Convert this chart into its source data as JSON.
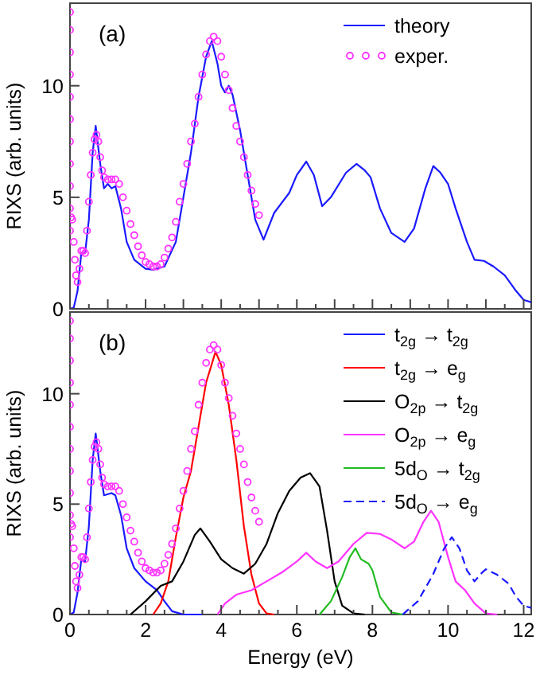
{
  "chart_data": [
    {
      "type": "line",
      "ylabel": "RIXS (arb. units)",
      "annotations": [
        "(a)"
      ],
      "xlim": [
        0,
        12.2
      ],
      "ylim": [
        0,
        13.7
      ],
      "xticks": [
        0,
        {
          "value": 0.5,
          "label": null
        },
        1,
        {
          "value": 1.5,
          "label": null
        },
        2,
        {
          "value": 2.5,
          "label": null
        },
        3,
        {
          "value": 3.5,
          "label": null
        },
        4,
        {
          "value": 4.5,
          "label": null
        },
        5,
        {
          "value": 5.5,
          "label": null
        },
        6,
        {
          "value": 6.5,
          "label": null
        },
        7,
        {
          "value": 7.5,
          "label": null
        },
        8,
        {
          "value": 8.5,
          "label": null
        },
        9,
        {
          "value": 9.5,
          "label": null
        },
        10,
        {
          "value": 10.5,
          "label": null
        },
        11,
        {
          "value": 11.5,
          "label": null
        },
        12
      ],
      "yticks": [
        0,
        5,
        10
      ],
      "tick_labels": "y",
      "legend": "top right",
      "grid": false,
      "series": [
        {
          "name": "theory",
          "color": "#1a1aff",
          "line_style": "solid",
          "x": [
            0,
            0.1,
            0.2,
            0.3,
            0.4,
            0.5,
            0.6,
            0.68,
            0.8,
            0.9,
            1.0,
            1.1,
            1.2,
            1.35,
            1.5,
            1.7,
            2.0,
            2.2,
            2.5,
            2.8,
            3.0,
            3.2,
            3.4,
            3.6,
            3.75,
            3.9,
            4.0,
            4.1,
            4.2,
            4.3,
            4.5,
            4.7,
            4.9,
            5.12,
            5.4,
            5.8,
            6.0,
            6.25,
            6.45,
            6.67,
            6.9,
            7.3,
            7.58,
            7.8,
            7.95,
            8.2,
            8.5,
            8.85,
            9.1,
            9.4,
            9.61,
            9.8,
            10.0,
            10.2,
            10.5,
            10.7,
            10.95,
            11.2,
            11.5,
            11.8,
            12.0,
            12.2
          ],
          "values": [
            0,
            0.05,
            0.8,
            2.5,
            2.5,
            4,
            7,
            8.2,
            6.5,
            5.4,
            5.6,
            5.4,
            5.5,
            4.5,
            3,
            2.2,
            1.8,
            1.75,
            1.9,
            3,
            5,
            7,
            9.5,
            11.3,
            12,
            11,
            10,
            9.7,
            10,
            9.6,
            8,
            6,
            4,
            3.1,
            4.3,
            5.2,
            6.0,
            6.6,
            6.0,
            4.6,
            5.0,
            6.1,
            6.5,
            6.2,
            5.9,
            4.5,
            3.4,
            3.0,
            3.6,
            5.4,
            6.4,
            6.1,
            5.6,
            4.5,
            3.0,
            2.2,
            2.15,
            1.9,
            1.5,
            0.8,
            0.4,
            0.3
          ]
        },
        {
          "name": "exper.",
          "type": "scatter",
          "marker": "circle",
          "color": "#ff33ff",
          "x": [
            0,
            0,
            0,
            0,
            0,
            0,
            0,
            0,
            0,
            0,
            0,
            0.03,
            0.06,
            0.1,
            0.13,
            0.16,
            0.2,
            0.25,
            0.3,
            0.35,
            0.4,
            0.45,
            0.5,
            0.55,
            0.6,
            0.65,
            0.7,
            0.75,
            0.8,
            0.85,
            0.9,
            1.0,
            1.1,
            1.2,
            1.3,
            1.4,
            1.5,
            1.6,
            1.7,
            1.8,
            1.9,
            2.0,
            2.1,
            2.2,
            2.3,
            2.4,
            2.5,
            2.6,
            2.7,
            2.8,
            2.9,
            3.0,
            3.1,
            3.2,
            3.3,
            3.4,
            3.5,
            3.6,
            3.7,
            3.8,
            3.9,
            4.0,
            4.1,
            4.2,
            4.3,
            4.4,
            4.5,
            4.6,
            4.7,
            4.8,
            4.9,
            5.0
          ],
          "values": [
            13.3,
            12.5,
            11.5,
            10.5,
            9.5,
            8.5,
            7.5,
            6.5,
            5.5,
            4.5,
            3.5,
            4.1,
            4.0,
            3.0,
            2.2,
            1.5,
            1.2,
            1.8,
            2.6,
            2.6,
            2.5,
            3.5,
            4.8,
            6.0,
            7.0,
            7.6,
            7.8,
            7.5,
            6.8,
            6.2,
            5.9,
            5.8,
            5.8,
            5.8,
            5.6,
            5.0,
            4.4,
            3.8,
            3.3,
            2.8,
            2.4,
            2.1,
            2.0,
            1.9,
            1.9,
            2.0,
            2.3,
            2.7,
            3.2,
            3.9,
            4.8,
            5.6,
            6.5,
            7.5,
            8.3,
            9.5,
            10.5,
            11.4,
            12.0,
            12.2,
            12.0,
            11.3,
            10.5,
            9.8,
            9.0,
            8.2,
            7.5,
            6.8,
            6.0,
            5.3,
            4.7,
            4.2
          ]
        }
      ]
    },
    {
      "type": "line",
      "ylabel": "RIXS (arb. units)",
      "xlabel": "Energy (eV)",
      "annotations": [
        "(b)"
      ],
      "xlim": [
        0,
        12.2
      ],
      "ylim": [
        0,
        13.7
      ],
      "xticks": [
        0,
        {
          "value": 0.5,
          "label": null
        },
        2,
        {
          "value": 1,
          "label": null
        },
        {
          "value": 1.5,
          "label": null
        },
        {
          "value": 2.5,
          "label": null
        },
        {
          "value": 3,
          "label": null
        },
        {
          "value": 3.5,
          "label": null
        },
        4,
        {
          "value": 4.5,
          "label": null
        },
        {
          "value": 5,
          "label": null
        },
        {
          "value": 5.5,
          "label": null
        },
        6,
        {
          "value": 6.5,
          "label": null
        },
        {
          "value": 7,
          "label": null
        },
        {
          "value": 7.5,
          "label": null
        },
        8,
        {
          "value": 8.5,
          "label": null
        },
        {
          "value": 9,
          "label": null
        },
        {
          "value": 9.5,
          "label": null
        },
        10,
        {
          "value": 10.5,
          "label": null
        },
        {
          "value": 11,
          "label": null
        },
        {
          "value": 11.5,
          "label": null
        },
        12
      ],
      "yticks": [
        0,
        5,
        10
      ],
      "legend": "top right",
      "grid": false,
      "series": [
        {
          "name": "t$_{2g}$ → t$_{2g}$",
          "color": "#1a1aff",
          "line_style": "solid",
          "x": [
            0,
            0.1,
            0.2,
            0.3,
            0.4,
            0.5,
            0.6,
            0.68,
            0.8,
            0.9,
            1.1,
            1.2,
            1.35,
            1.5,
            1.7,
            2.0,
            2.3,
            2.5,
            2.7,
            3.0,
            3.5
          ],
          "values": [
            0,
            0.1,
            1,
            2.5,
            2.4,
            4,
            7,
            8.2,
            6.5,
            5.4,
            5.5,
            5.4,
            4.5,
            3,
            2.1,
            1.5,
            1.1,
            0.6,
            0.15,
            0,
            0
          ]
        },
        {
          "name": "t$_{2g}$ → e$_{g}$",
          "color": "#ff0000",
          "line_style": "solid",
          "x": [
            2.2,
            2.4,
            2.6,
            2.8,
            3.0,
            3.2,
            3.4,
            3.6,
            3.85,
            4.0,
            4.2,
            4.4,
            4.6,
            4.8,
            5.0,
            5.2,
            5.4
          ],
          "values": [
            0,
            0.5,
            1.5,
            3.5,
            5.3,
            6.5,
            8.5,
            10.5,
            11.9,
            11.3,
            9.5,
            7,
            4,
            1.8,
            0.5,
            0.05,
            0
          ]
        },
        {
          "name": "O$_{2p}$ → t$_{2g}$",
          "color": "#000000",
          "line_style": "solid",
          "x": [
            1.6,
            2.0,
            2.4,
            2.7,
            3.0,
            3.3,
            3.45,
            3.7,
            4.0,
            4.3,
            4.6,
            4.9,
            5.2,
            5.5,
            5.8,
            6.1,
            6.35,
            6.6,
            6.8,
            7.0,
            7.2,
            7.5,
            7.8
          ],
          "values": [
            0,
            0.6,
            1.3,
            1.5,
            2.4,
            3.6,
            3.9,
            3.3,
            2.5,
            2.1,
            1.85,
            2.3,
            3.2,
            4.6,
            5.6,
            6.2,
            6.4,
            5.8,
            3.8,
            1.5,
            0.4,
            0.05,
            0
          ]
        },
        {
          "name": "O$_{2p}$ → e$_{g}$",
          "color": "#ff33ff",
          "line_style": "solid",
          "x": [
            3.9,
            4.1,
            4.4,
            4.8,
            5.2,
            5.6,
            6.0,
            6.25,
            6.5,
            6.8,
            7.1,
            7.5,
            7.85,
            8.2,
            8.5,
            8.85,
            9.1,
            9.35,
            9.55,
            9.75,
            10.0,
            10.2,
            10.45,
            10.7,
            11.0,
            11.3
          ],
          "values": [
            0,
            0.5,
            0.9,
            1.1,
            1.5,
            1.9,
            2.4,
            2.8,
            2.4,
            2.1,
            2.4,
            3.2,
            3.7,
            3.65,
            3.4,
            3.0,
            3.3,
            4.2,
            4.7,
            4.2,
            2.6,
            1.5,
            1.1,
            0.5,
            0.05,
            0
          ]
        },
        {
          "name": "5d$_{O}$ → t$_{2g}$",
          "color": "#22bb22",
          "line_style": "solid",
          "x": [
            6.6,
            6.9,
            7.2,
            7.4,
            7.55,
            7.7,
            7.9,
            8.0,
            8.2,
            8.5,
            8.8
          ],
          "values": [
            0,
            0.6,
            1.7,
            2.6,
            3.0,
            2.5,
            2.3,
            2.0,
            0.8,
            0.1,
            0
          ]
        },
        {
          "name": "5d$_{O}$ → e$_{g}$",
          "color": "#1a1aff",
          "line_style": "dashed",
          "x": [
            8.8,
            9.2,
            9.6,
            9.9,
            10.1,
            10.3,
            10.5,
            10.7,
            10.9,
            11.0,
            11.3,
            11.6,
            11.8,
            12.0,
            12.2
          ],
          "values": [
            0,
            0.6,
            1.8,
            3.0,
            3.5,
            3.0,
            2.0,
            1.5,
            1.9,
            2.05,
            1.8,
            1.4,
            0.8,
            0.4,
            0.3
          ]
        },
        {
          "type": "scatter",
          "marker": "circle",
          "color": "#ff33ff",
          "x": [
            0,
            0,
            0,
            0,
            0,
            0,
            0,
            0,
            0,
            0,
            0,
            0.03,
            0.06,
            0.1,
            0.13,
            0.16,
            0.2,
            0.25,
            0.3,
            0.35,
            0.4,
            0.45,
            0.5,
            0.55,
            0.6,
            0.65,
            0.7,
            0.75,
            0.8,
            0.85,
            0.9,
            1.0,
            1.1,
            1.2,
            1.3,
            1.4,
            1.5,
            1.6,
            1.7,
            1.8,
            1.9,
            2.0,
            2.1,
            2.2,
            2.3,
            2.4,
            2.5,
            2.6,
            2.7,
            2.8,
            2.9,
            3.0,
            3.1,
            3.2,
            3.3,
            3.4,
            3.5,
            3.6,
            3.7,
            3.8,
            3.9,
            4.0,
            4.1,
            4.2,
            4.3,
            4.4,
            4.5,
            4.6,
            4.7,
            4.8,
            4.9,
            5.0
          ],
          "values": [
            13.3,
            12.5,
            11.5,
            10.5,
            9.5,
            8.5,
            7.5,
            6.5,
            5.5,
            4.5,
            3.5,
            4.1,
            4.0,
            3.0,
            2.2,
            1.5,
            1.2,
            1.8,
            2.6,
            2.6,
            2.5,
            3.5,
            4.8,
            6.0,
            7.0,
            7.6,
            7.8,
            7.5,
            6.8,
            6.2,
            5.9,
            5.8,
            5.8,
            5.8,
            5.6,
            5.0,
            4.4,
            3.8,
            3.3,
            2.8,
            2.4,
            2.1,
            2.0,
            1.9,
            1.9,
            2.0,
            2.3,
            2.7,
            3.2,
            3.9,
            4.8,
            5.6,
            6.5,
            7.5,
            8.3,
            9.5,
            10.5,
            11.4,
            12.0,
            12.2,
            12.0,
            11.3,
            10.5,
            9.8,
            9.0,
            8.2,
            7.5,
            6.8,
            6.0,
            5.3,
            4.7,
            4.2
          ]
        }
      ]
    }
  ]
}
